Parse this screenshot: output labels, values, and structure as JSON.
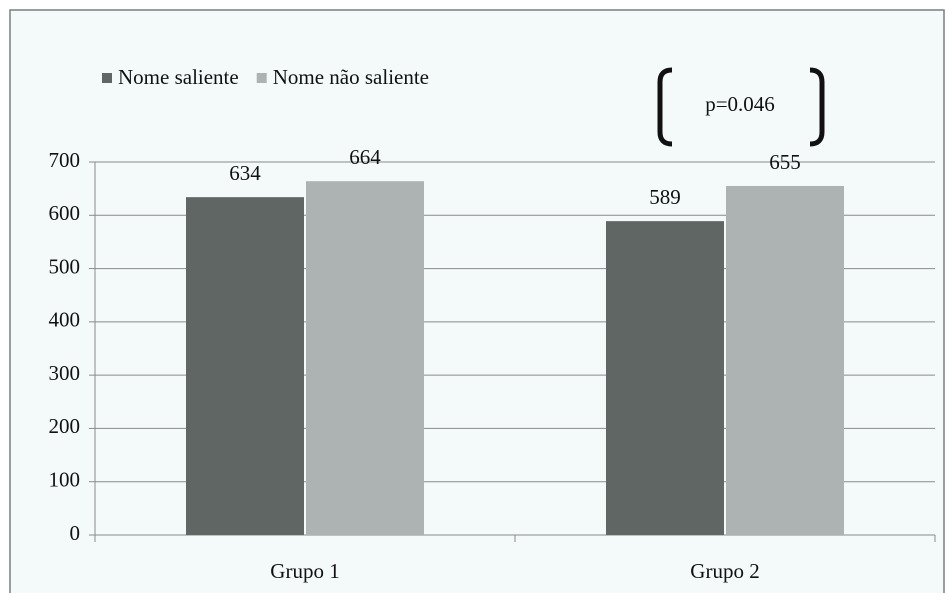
{
  "chart_data": {
    "type": "bar",
    "categories": [
      "Grupo 1",
      "Grupo 2"
    ],
    "series": [
      {
        "name": "Nome saliente",
        "color": "#5f6664",
        "values": [
          634,
          589
        ]
      },
      {
        "name": "Nome não saliente",
        "color": "#adb3b2",
        "values": [
          664,
          655
        ]
      }
    ],
    "ylim": [
      0,
      700
    ],
    "yticks": [
      0,
      100,
      200,
      300,
      400,
      500,
      600,
      700
    ],
    "grid": true,
    "legend": "top-left",
    "annotation": "p=0.046"
  }
}
